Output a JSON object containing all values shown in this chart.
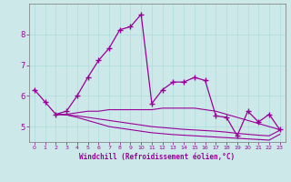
{
  "xlabel": "Windchill (Refroidissement éolien,°C)",
  "background_color": "#cce8e8",
  "line_color": "#990099",
  "xlim": [
    -0.5,
    23.5
  ],
  "ylim": [
    4.5,
    9.0
  ],
  "yticks": [
    5,
    6,
    7,
    8
  ],
  "xticks": [
    0,
    1,
    2,
    3,
    4,
    5,
    6,
    7,
    8,
    9,
    10,
    11,
    12,
    13,
    14,
    15,
    16,
    17,
    18,
    19,
    20,
    21,
    22,
    23
  ],
  "series1_x": [
    0,
    1,
    2,
    3,
    4,
    5,
    6,
    7,
    8,
    9,
    10,
    11,
    12,
    13,
    14,
    15,
    16,
    17,
    18,
    19,
    20,
    21,
    22,
    23
  ],
  "series1_y": [
    6.2,
    5.8,
    5.4,
    5.5,
    6.0,
    6.6,
    7.15,
    7.55,
    8.15,
    8.25,
    8.65,
    5.75,
    6.2,
    6.45,
    6.45,
    6.6,
    6.5,
    5.35,
    5.3,
    4.7,
    5.5,
    5.15,
    5.4,
    4.9
  ],
  "series2_x": [
    2,
    3,
    4,
    5,
    6,
    7,
    8,
    9,
    10,
    11,
    12,
    13,
    14,
    15,
    16,
    17,
    18,
    19,
    20,
    21,
    22,
    23
  ],
  "series2_y": [
    5.4,
    5.4,
    5.45,
    5.5,
    5.5,
    5.55,
    5.55,
    5.55,
    5.55,
    5.55,
    5.6,
    5.6,
    5.6,
    5.6,
    5.55,
    5.5,
    5.4,
    5.3,
    5.2,
    5.1,
    5.0,
    4.9
  ],
  "series3_x": [
    2,
    3,
    4,
    5,
    6,
    7,
    8,
    9,
    10,
    11,
    12,
    13,
    14,
    15,
    16,
    17,
    18,
    19,
    20,
    21,
    22,
    23
  ],
  "series3_y": [
    5.4,
    5.38,
    5.35,
    5.3,
    5.25,
    5.2,
    5.15,
    5.1,
    5.05,
    5.0,
    4.97,
    4.94,
    4.91,
    4.89,
    4.87,
    4.85,
    4.82,
    4.78,
    4.75,
    4.72,
    4.7,
    4.88
  ],
  "series4_x": [
    2,
    3,
    4,
    5,
    6,
    7,
    8,
    9,
    10,
    11,
    12,
    13,
    14,
    15,
    16,
    17,
    18,
    19,
    20,
    21,
    22,
    23
  ],
  "series4_y": [
    5.4,
    5.38,
    5.3,
    5.2,
    5.1,
    5.0,
    4.95,
    4.9,
    4.85,
    4.8,
    4.77,
    4.74,
    4.72,
    4.7,
    4.68,
    4.66,
    4.64,
    4.62,
    4.6,
    4.58,
    4.56,
    4.75
  ]
}
